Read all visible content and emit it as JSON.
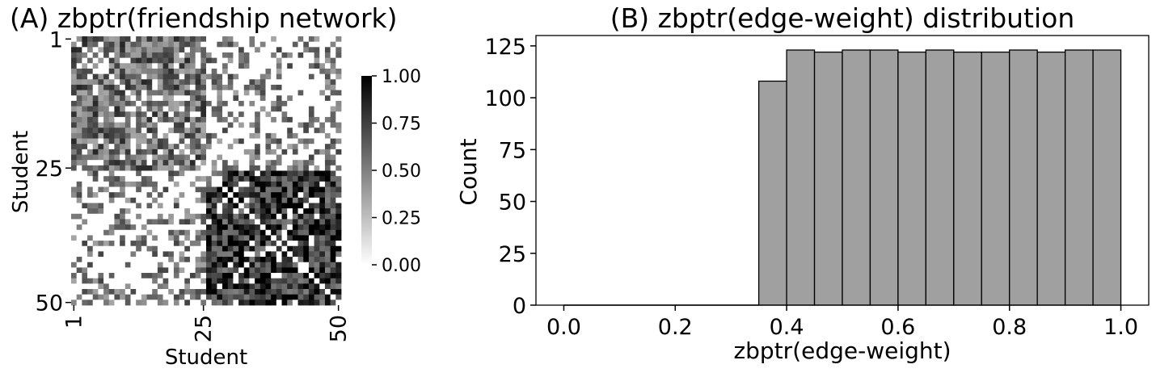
{
  "chart_data": [
    {
      "type": "heatmap",
      "title": "(A) zbptr(friendship network)",
      "xlabel": "Student",
      "ylabel": "Student",
      "x_ticks": [
        "1",
        "25",
        "50"
      ],
      "y_ticks": [
        "1",
        "25",
        "50"
      ],
      "size": 50,
      "blocks": [
        {
          "rows": [
            1,
            25
          ],
          "cols": [
            1,
            25
          ],
          "mean_weight": 0.55
        },
        {
          "rows": [
            26,
            50
          ],
          "cols": [
            26,
            50
          ],
          "mean_weight": 0.8
        },
        {
          "rows": [
            1,
            25
          ],
          "cols": [
            26,
            50
          ],
          "mean_weight": 0.2
        },
        {
          "rows": [
            26,
            50
          ],
          "cols": [
            1,
            25
          ],
          "mean_weight": 0.2
        }
      ],
      "diagonal": 0,
      "colormap": [
        "#ffffff",
        "#000000"
      ],
      "colorbar": {
        "min": 0.0,
        "max": 1.0,
        "ticks": [
          "0.00",
          "0.25",
          "0.50",
          "0.75",
          "1.00"
        ]
      }
    },
    {
      "type": "bar",
      "title": "(B) zbptr(edge-weight) distribution",
      "xlabel": "zbptr(edge-weight)",
      "ylabel": "Count",
      "bin_edges": [
        0.35,
        0.4,
        0.45,
        0.5,
        0.55,
        0.6,
        0.65,
        0.7,
        0.75,
        0.8,
        0.85,
        0.9,
        0.95,
        1.0
      ],
      "values": [
        108,
        123,
        122,
        123,
        123,
        122,
        123,
        122,
        122,
        123,
        122,
        123,
        123
      ],
      "baseline_x": [
        0.0,
        0.35
      ],
      "xlim": [
        -0.05,
        1.05
      ],
      "ylim": [
        0,
        130
      ],
      "x_ticks": [
        "0.0",
        "0.2",
        "0.4",
        "0.6",
        "0.8",
        "1.0"
      ],
      "y_ticks": [
        "0",
        "25",
        "50",
        "75",
        "100",
        "125"
      ],
      "bar_color": "#a0a0a0",
      "edge_color": "#000000",
      "grid": false
    }
  ]
}
